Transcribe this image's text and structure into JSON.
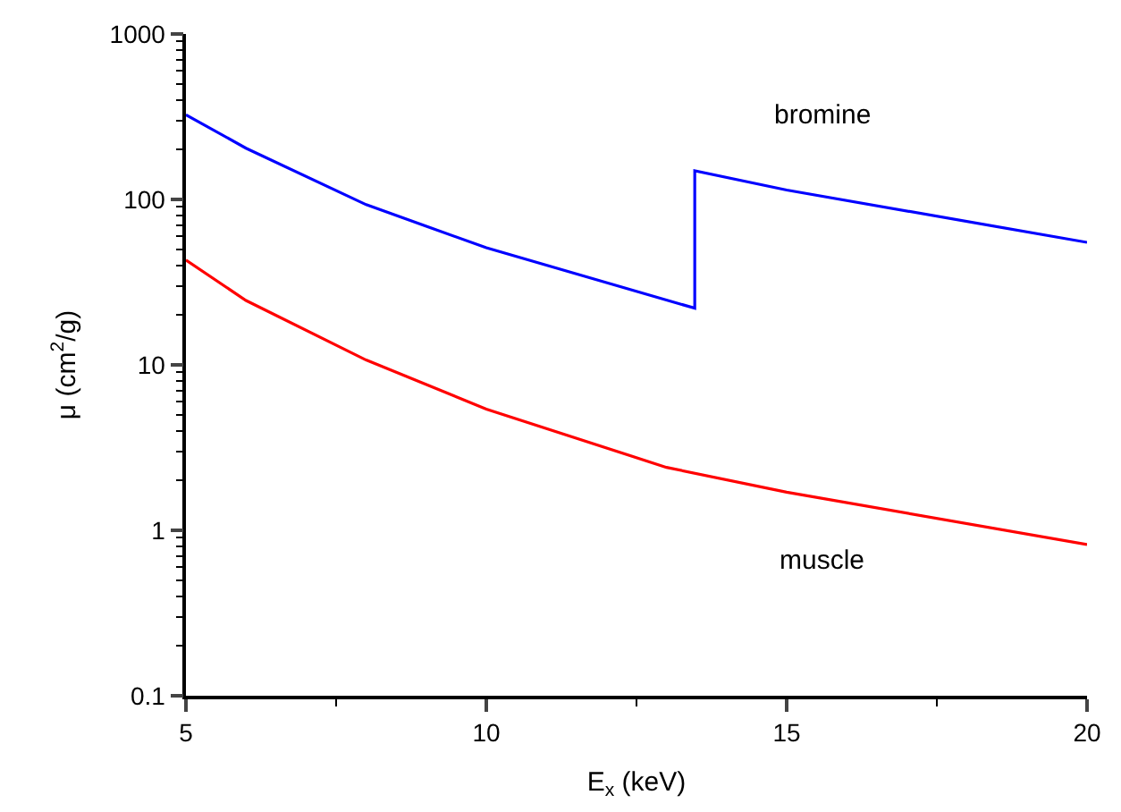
{
  "chart_data": {
    "type": "line",
    "xlabel": "E$_{x}$ (keV)",
    "ylabel": "μ (cm$^{2}$/g)",
    "log": "y",
    "xlim": [
      5,
      20
    ],
    "xticks": [
      5,
      10,
      15,
      20
    ],
    "ylim": [
      0.1,
      1000
    ],
    "yticks": [
      0.1,
      1,
      10,
      100,
      1000
    ],
    "legend": false,
    "marker": "none",
    "line_style": "solid",
    "series": [
      {
        "name": "bromine",
        "color": "#0000ff",
        "x": [
          5,
          6,
          8,
          10,
          13.47,
          13.47,
          15,
          20
        ],
        "values": [
          325,
          204,
          93,
          51,
          22,
          149,
          114,
          55
        ]
      },
      {
        "name": "muscle",
        "color": "#ff0000",
        "x": [
          5,
          6,
          8,
          10,
          13,
          15,
          20
        ],
        "values": [
          43,
          24.5,
          10.7,
          5.4,
          2.4,
          1.7,
          0.82
        ]
      }
    ]
  }
}
